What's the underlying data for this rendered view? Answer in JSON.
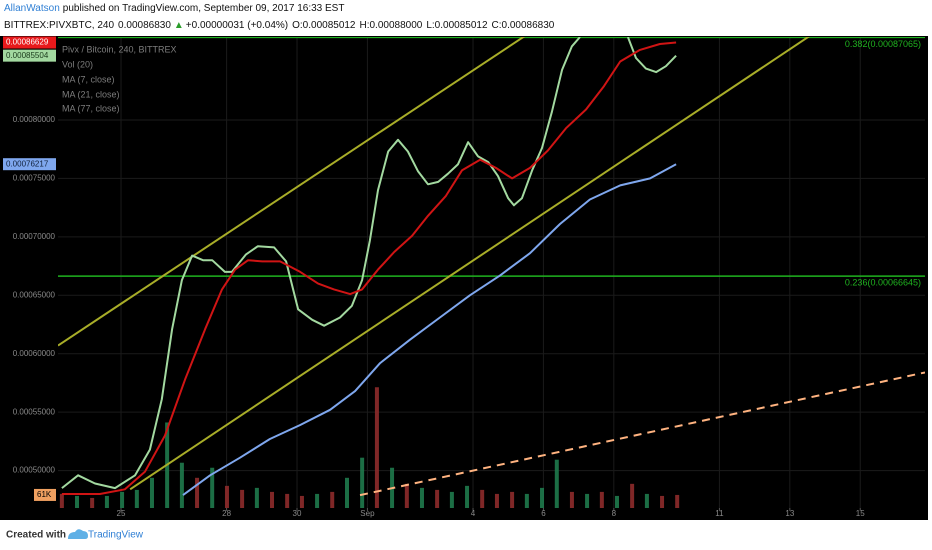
{
  "header": {
    "author": "AllanWatson",
    "published": "published on TradingView.com, September 09, 2017 16:33 EST",
    "symbol": "BITTREX:PIVXBTC, 240",
    "last": "0.00086830",
    "arrow": "▲",
    "change": "+0.00000031 (+0.04%)",
    "open": "O:0.00085012",
    "high": "H:0.00088000",
    "low": "L:0.00085012",
    "close": "C:0.00086830"
  },
  "footer": {
    "created": "Created with",
    "brand": "TradingView"
  },
  "chart_data": {
    "type": "line",
    "legend_title": "Pivx / Bitcoin, 240, BITTREX",
    "grid": true,
    "xlim": [
      -1.79,
      22.84
    ],
    "ylim": [
      0.000468,
      0.000871
    ],
    "xticks": [
      {
        "value": 0,
        "label": "25"
      },
      {
        "value": 3,
        "label": "28"
      },
      {
        "value": 5,
        "label": "30"
      },
      {
        "value": 7,
        "label": "Sep"
      },
      {
        "value": 10,
        "label": "4"
      },
      {
        "value": 12,
        "label": "6"
      },
      {
        "value": 14,
        "label": "8"
      },
      {
        "value": 17,
        "label": "11"
      },
      {
        "value": 19,
        "label": "13"
      },
      {
        "value": 21,
        "label": "15"
      }
    ],
    "yticks": [
      {
        "value": 0.0005,
        "label": "0.00050000"
      },
      {
        "value": 0.00055,
        "label": "0.00055000"
      },
      {
        "value": 0.0006,
        "label": "0.00060000"
      },
      {
        "value": 0.00065,
        "label": "0.00065000"
      },
      {
        "value": 0.0007,
        "label": "0.00070000"
      },
      {
        "value": 0.00075,
        "label": "0.00075000"
      },
      {
        "value": 0.0008,
        "label": "0.00080000"
      }
    ],
    "series": [
      {
        "name": "MA (7, close)",
        "color": "#a3d9a0",
        "tag_text": "#1a3a1a",
        "x": [
          -1.68,
          -1.22,
          -0.74,
          -0.17,
          0.4,
          0.82,
          1.16,
          1.45,
          1.73,
          2.02,
          2.33,
          2.59,
          2.95,
          3.15,
          3.55,
          3.89,
          4.35,
          4.69,
          5.03,
          5.43,
          5.77,
          6.22,
          6.56,
          6.85,
          7.07,
          7.3,
          7.59,
          7.87,
          8.15,
          8.44,
          8.72,
          9.01,
          9.29,
          9.57,
          9.86,
          10.14,
          10.43,
          10.71,
          11.0,
          11.16,
          11.39,
          11.68,
          11.96,
          12.24,
          12.53,
          12.81,
          13.04,
          13.7,
          14.4,
          14.63,
          14.91,
          15.2,
          15.48,
          15.77
        ],
        "values": [
          0.000485,
          0.000496,
          0.000489,
          0.000485,
          0.000496,
          0.000518,
          0.000561,
          0.000621,
          0.000663,
          0.000684,
          0.00068,
          0.00068,
          0.00067,
          0.00067,
          0.000685,
          0.000692,
          0.000691,
          0.000679,
          0.000638,
          0.000629,
          0.000624,
          0.000631,
          0.000641,
          0.000663,
          0.000697,
          0.00074,
          0.000773,
          0.000783,
          0.000773,
          0.000756,
          0.000745,
          0.000747,
          0.000754,
          0.000762,
          0.000781,
          0.000769,
          0.000764,
          0.000752,
          0.000733,
          0.000727,
          0.000733,
          0.000757,
          0.000776,
          0.000807,
          0.000843,
          0.000863,
          0.000871,
          null,
          0.000871,
          0.000853,
          0.000844,
          0.000841,
          0.000846,
          0.00085504
        ]
      },
      {
        "name": "MA (21, close)",
        "color": "#d01414",
        "tag_color": "#e8191b",
        "tag_text": "#ffffff",
        "x": [
          -1.68,
          -0.6,
          0.11,
          0.68,
          1.25,
          1.82,
          2.39,
          2.87,
          3.24,
          3.61,
          4.01,
          4.52,
          5.09,
          5.6,
          6.05,
          6.51,
          6.85,
          7.3,
          7.76,
          8.27,
          8.72,
          9.23,
          9.69,
          10.2,
          10.65,
          11.11,
          11.62,
          12.13,
          12.64,
          13.21,
          13.72,
          14.18,
          14.74,
          15.31,
          15.77
        ],
        "values": [
          0.00048,
          0.00048,
          0.000484,
          0.000499,
          0.00053,
          0.000578,
          0.000621,
          0.000655,
          0.000672,
          0.00068,
          0.000679,
          0.000679,
          0.00067,
          0.00066,
          0.000655,
          0.000651,
          0.000655,
          0.000672,
          0.000687,
          0.000701,
          0.000718,
          0.000735,
          0.000757,
          0.000766,
          0.000759,
          0.00075,
          0.000759,
          0.000774,
          0.000793,
          0.000809,
          0.000829,
          0.00085,
          0.00086,
          0.000865,
          0.00086629
        ]
      },
      {
        "name": "MA (77, close)",
        "color": "#7fa7ee",
        "tag_text": "#10203a",
        "x": [
          1.76,
          2.53,
          3.38,
          4.23,
          5.09,
          5.94,
          6.65,
          7.36,
          8.21,
          9.06,
          9.91,
          10.77,
          11.62,
          12.47,
          13.32,
          14.18,
          15.03,
          15.77
        ],
        "values": [
          0.000479,
          0.000496,
          0.000511,
          0.000527,
          0.000539,
          0.000552,
          0.000568,
          0.000592,
          0.000612,
          0.000631,
          0.00065,
          0.000667,
          0.000686,
          0.000711,
          0.000732,
          0.000744,
          0.00075,
          0.00076217
        ]
      }
    ],
    "volume": {
      "name": "Vol (20)",
      "vlim": [
        0,
        2200000
      ],
      "x": [
        -1.68,
        -1.25,
        -0.82,
        -0.4,
        0.03,
        0.45,
        0.88,
        1.31,
        1.73,
        2.16,
        2.59,
        3.01,
        3.44,
        3.86,
        4.29,
        4.72,
        5.14,
        5.57,
        6.0,
        6.42,
        6.85,
        7.27,
        7.7,
        8.12,
        8.55,
        8.98,
        9.4,
        9.83,
        10.26,
        10.68,
        11.11,
        11.53,
        11.96,
        12.38,
        12.81,
        13.24,
        13.66,
        14.09,
        14.52,
        14.94,
        15.37,
        15.8
      ],
      "values": [
        65800,
        56400,
        47000,
        56400,
        75200,
        84600,
        141000,
        399500,
        211500,
        141000,
        188000,
        103400,
        84600,
        94000,
        75200,
        65800,
        56400,
        65800,
        75200,
        141000,
        235000,
        564000,
        188000,
        112800,
        94000,
        84600,
        75200,
        103400,
        84600,
        65800,
        75200,
        65800,
        94000,
        225600,
        75200,
        65800,
        75200,
        56400,
        112800,
        65800,
        56400,
        61000
      ],
      "colors": [
        "#8e2b2b",
        "#1f7a4d",
        "#8e2b2b",
        "#1f7a4d",
        "#1f7a4d",
        "#1f7a4d",
        "#1f7a4d",
        "#1f7a4d",
        "#1f7a4d",
        "#8e2b2b",
        "#1f7a4d",
        "#8e2b2b",
        "#8e2b2b",
        "#1f7a4d",
        "#8e2b2b",
        "#8e2b2b",
        "#8e2b2b",
        "#1f7a4d",
        "#8e2b2b",
        "#1f7a4d",
        "#1f7a4d",
        "#8e2b2b",
        "#1f7a4d",
        "#8e2b2b",
        "#1f7a4d",
        "#8e2b2b",
        "#1f7a4d",
        "#1f7a4d",
        "#8e2b2b",
        "#8e2b2b",
        "#8e2b2b",
        "#1f7a4d",
        "#1f7a4d",
        "#1f7a4d",
        "#8e2b2b",
        "#1f7a4d",
        "#8e2b2b",
        "#1f7a4d",
        "#8e2b2b",
        "#1f7a4d",
        "#8e2b2b",
        "#8e2b2b"
      ],
      "tag": {
        "value": 61000,
        "label": "61K",
        "color": "#f0a060"
      }
    },
    "levels": [
      {
        "label": "0.382(0.00087065)",
        "value": 0.00087065,
        "color": "#1fb21f"
      },
      {
        "label": "0.236(0.00066645)",
        "value": 0.00066645,
        "color": "#1fb21f"
      }
    ],
    "trendlines": [
      {
        "x": [
          -1.79,
          11.48
        ],
        "values": [
          0.000607,
          0.000872
        ],
        "color": "#a8ad28"
      },
      {
        "x": [
          0.26,
          19.57
        ],
        "values": [
          0.000484,
          0.000872
        ],
        "color": "#a8ad28"
      },
      {
        "x": [
          6.79,
          22.84
        ],
        "values": [
          0.000479,
          0.000584
        ],
        "color": "#ffb380",
        "dashed": true
      }
    ]
  }
}
